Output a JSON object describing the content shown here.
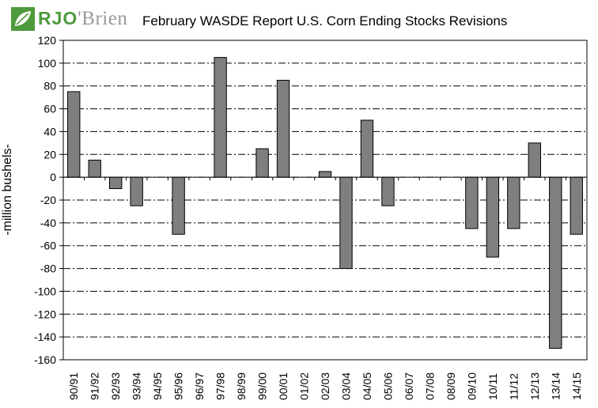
{
  "logo": {
    "mark": "leaf-logo-icon",
    "text_bold": "RJO",
    "text_rest": "'Brien"
  },
  "chart_data": {
    "type": "bar",
    "title": "February WASDE Report U.S. Corn Ending Stocks Revisions",
    "ylabel": "-million bushels-",
    "xlabel": "",
    "ylim": [
      -160,
      120
    ],
    "yticks": [
      120,
      100,
      80,
      60,
      40,
      20,
      0,
      -20,
      -40,
      -60,
      -80,
      -100,
      -120,
      -140,
      -160
    ],
    "grid": true,
    "bar_color": "#7f7f7f",
    "categories": [
      "90/91",
      "91/92",
      "92/93",
      "93/94",
      "94/95",
      "95/96",
      "96/97",
      "97/98",
      "98/99",
      "99/00",
      "00/01",
      "01/02",
      "02/03",
      "03/04",
      "04/05",
      "05/06",
      "06/07",
      "07/08",
      "08/09",
      "09/10",
      "10/11",
      "11/12",
      "12/13",
      "13/14",
      "14/15"
    ],
    "values": [
      75,
      15,
      -10,
      -25,
      0,
      -50,
      0,
      105,
      0,
      25,
      85,
      0,
      5,
      -80,
      50,
      -25,
      0,
      0,
      0,
      -45,
      -70,
      -45,
      30,
      -150,
      -50
    ]
  }
}
